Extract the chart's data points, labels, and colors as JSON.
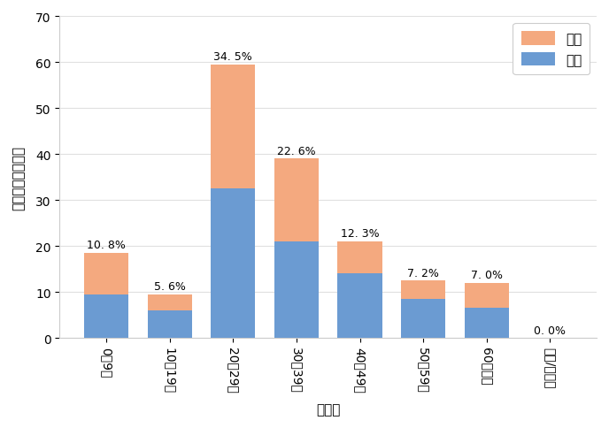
{
  "categories": [
    "0〜9歳",
    "10〜19歳",
    "20〜29歳",
    "30〜39歳",
    "40〜49歳",
    "50〜59歳",
    "60歳以上",
    "不詳/その他"
  ],
  "male_values": [
    9.5,
    6.0,
    32.5,
    21.0,
    14.0,
    8.5,
    6.5,
    0.0
  ],
  "female_values": [
    9.0,
    3.5,
    27.0,
    18.0,
    7.0,
    4.0,
    5.5,
    0.0
  ],
  "percentages": [
    "10. 8%",
    "5. 6%",
    "34. 5%",
    "22. 6%",
    "12. 3%",
    "7. 2%",
    "7. 0%",
    "0. 0%"
  ],
  "male_color": "#6b9bd2",
  "female_color": "#f4a97f",
  "ylim": [
    0,
    70
  ],
  "yticks": [
    0,
    10,
    20,
    30,
    40,
    50,
    60,
    70
  ],
  "xlabel": "年齢層",
  "ylabel": "移動者数（千人）",
  "legend_female": "女性",
  "legend_male": "男性",
  "background_color": "#ffffff"
}
